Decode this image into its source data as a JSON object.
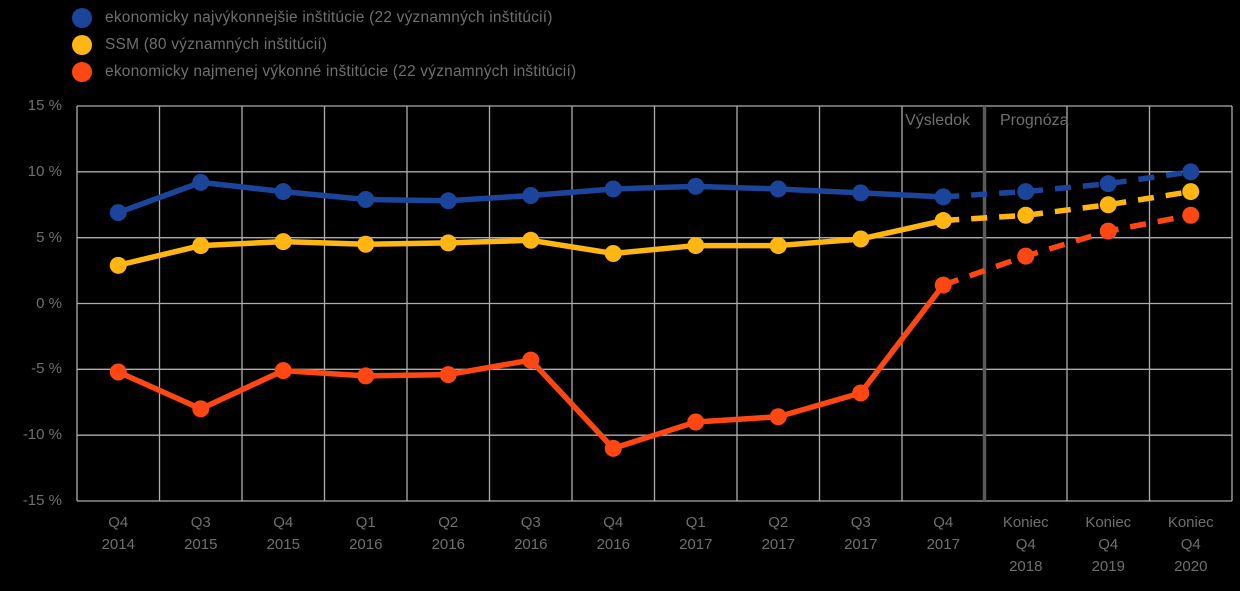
{
  "legend": {
    "items": [
      {
        "name": "series-top-performers",
        "label": "ekonomicky najvýkonnejšie inštitúcie (22 významných inštitúcií)",
        "color": "#1B449B"
      },
      {
        "name": "series-ssm",
        "label": "SSM (80 významných inštitúcií)",
        "color": "#FFB612"
      },
      {
        "name": "series-least-performers",
        "label": "ekonomicky najmenej výkonné inštitúcie (22 významných inštitúcií)",
        "color": "#FF4713"
      }
    ]
  },
  "chart_data": {
    "type": "line",
    "title": "",
    "xlabel": "",
    "ylabel": "",
    "categories": [
      "Q4 2014",
      "Q3 2015",
      "Q4 2015",
      "Q1 2016",
      "Q2 2016",
      "Q3 2016",
      "Q4 2016",
      "Q1 2017",
      "Q2 2017",
      "Q3 2017",
      "Q4 2017",
      "Koniec Q4 2018",
      "Koniec Q4 2019",
      "Koniec Q4 2020"
    ],
    "x_tick_labels": [
      "Q4\n2014",
      "Q3\n2015",
      "Q4\n2015",
      "Q1\n2016",
      "Q2\n2016",
      "Q3\n2016",
      "Q4\n2016",
      "Q1\n2017",
      "Q2\n2017",
      "Q3\n2017",
      "Q4\n2017",
      "Koniec\nQ4\n2018",
      "Koniec\nQ4\n2019",
      "Koniec\nQ4\n2020"
    ],
    "y_tick_labels": [
      "15 %",
      "10 %",
      "5 %",
      "0 %",
      "-5 %",
      "-10 %",
      "-15 %"
    ],
    "ylim": [
      -15,
      15
    ],
    "ytick_step": 5,
    "grid": true,
    "legend_position": "top-left",
    "forecast_start_index": 10,
    "annotations": {
      "result": "Výsledok",
      "forecast": "Prognóza"
    },
    "series": [
      {
        "name": "ekonomicky najvýkonnejšie inštitúcie (22 významných inštitúcií)",
        "color": "#1B449B",
        "values": [
          6.9,
          9.2,
          8.5,
          7.9,
          7.8,
          8.2,
          8.7,
          8.9,
          8.7,
          8.4,
          8.1,
          8.5,
          9.1,
          10.0
        ]
      },
      {
        "name": "SSM (80 významných inštitúcií)",
        "color": "#FFB612",
        "values": [
          2.9,
          4.4,
          4.7,
          4.5,
          4.6,
          4.8,
          3.8,
          4.4,
          4.4,
          4.9,
          6.3,
          6.7,
          7.5,
          8.5
        ]
      },
      {
        "name": "ekonomicky najmenej výkonné inštitúcie (22 významných inštitúcií)",
        "color": "#FF4713",
        "values": [
          -5.2,
          -8.0,
          -5.1,
          -5.5,
          -5.4,
          -4.3,
          -11.0,
          -9.0,
          -8.6,
          -6.8,
          1.4,
          3.6,
          5.5,
          6.7
        ]
      }
    ],
    "style": {
      "background": "#000000",
      "grid_color": "#ADADAD",
      "divider_color": "#5A5A5A",
      "text_color": "#6f6f6f",
      "solid_until_index": 10,
      "dashed_from_index": 10
    }
  }
}
